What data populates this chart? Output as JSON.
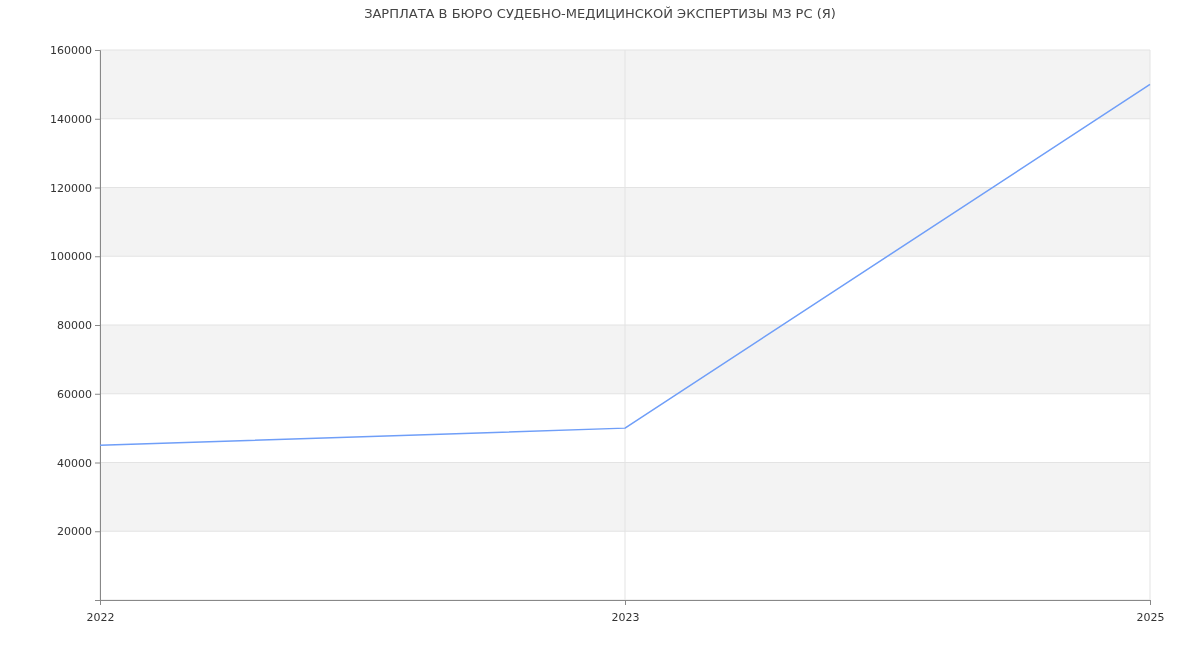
{
  "chart_data": {
    "type": "line",
    "title": "ЗАРПЛАТА В БЮРО СУДЕБНО-МЕДИЦИНСКОЙ ЭКСПЕРТИЗЫ МЗ РС (Я)",
    "categories": [
      "2022",
      "2023",
      "2025"
    ],
    "series": [
      {
        "color": "#6f9ef8",
        "values": [
          45000,
          50000,
          150000
        ]
      }
    ],
    "ylim": [
      0,
      160000
    ],
    "yticks": [
      {
        "value": 0,
        "label": null
      },
      20000,
      40000,
      60000,
      80000,
      100000,
      120000,
      140000,
      160000
    ],
    "grid": true,
    "marker": "none",
    "line_style": "solid"
  }
}
